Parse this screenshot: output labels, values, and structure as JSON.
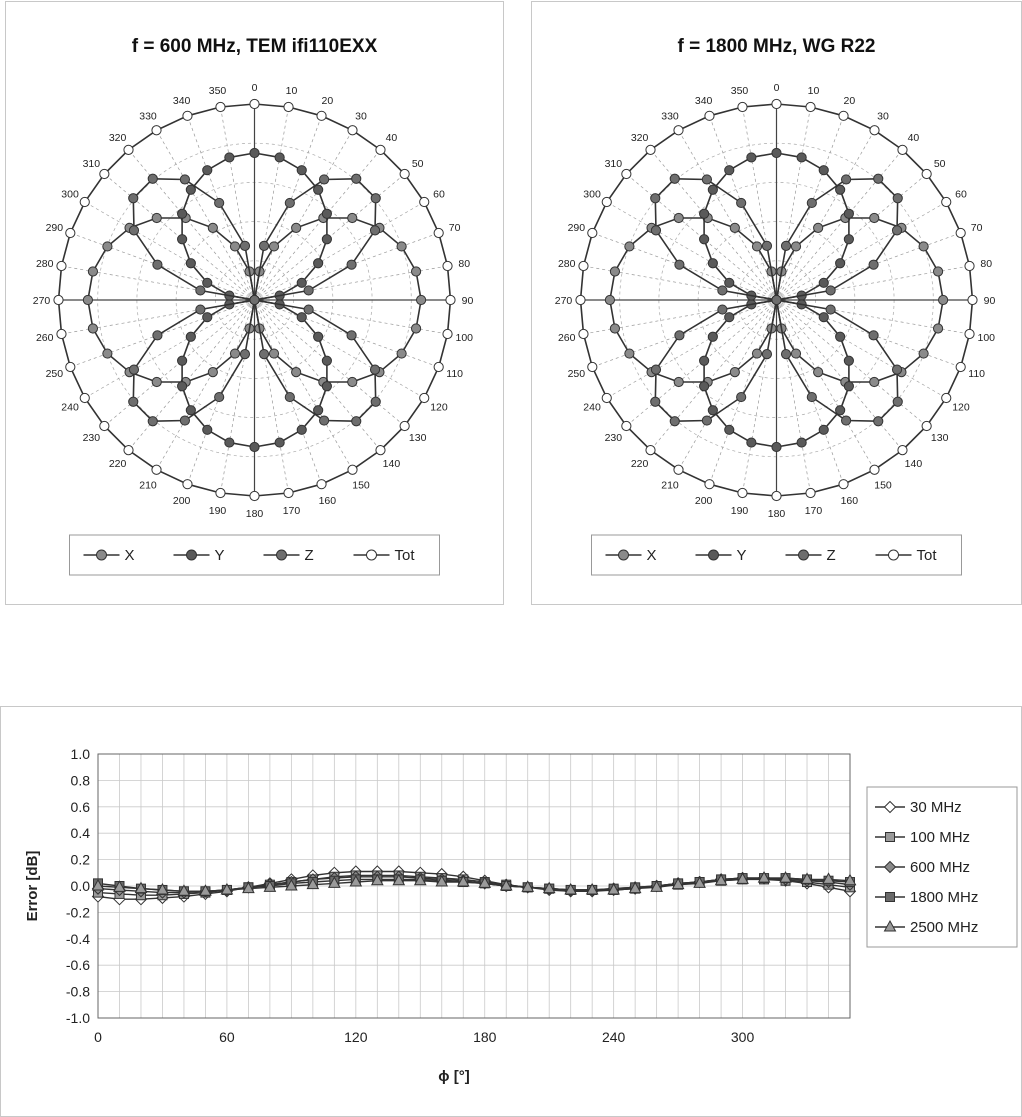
{
  "chart_data": [
    {
      "type": "polar",
      "title": "f = 600 MHz, TEM  ifi110EXX",
      "angles_deg": [
        0,
        10,
        20,
        30,
        40,
        50,
        60,
        70,
        80,
        90,
        100,
        110,
        120,
        130,
        140,
        150,
        160,
        170,
        180,
        190,
        200,
        210,
        220,
        230,
        240,
        250,
        260,
        270,
        280,
        290,
        300,
        310,
        320,
        330,
        340,
        350
      ],
      "angle_labels": [
        "0",
        "10",
        "20",
        "30",
        "40",
        "50",
        "60",
        "70",
        "80",
        "90",
        "100",
        "110",
        "120",
        "130",
        "140",
        "150",
        "160",
        "170",
        "180",
        "190",
        "200",
        "210",
        "220",
        "230",
        "240",
        "250",
        "260",
        "270",
        "280",
        "290",
        "300",
        "310",
        "320",
        "330",
        "340",
        "350"
      ],
      "radial_range": [
        0,
        1
      ],
      "series": [
        {
          "name": "X",
          "model": "abs_sin",
          "amplitude": 0.85,
          "color": "#8a8a8a"
        },
        {
          "name": "Y",
          "model": "abs_cos",
          "amplitude": 0.75,
          "color": "#5a5a5a"
        },
        {
          "name": "Z",
          "model": "abs_sin2",
          "amplitude": 0.82,
          "color": "#6e6e6e"
        },
        {
          "name": "Tot",
          "model": "const",
          "amplitude": 1.0,
          "color": "#ffffff"
        }
      ],
      "legend": [
        "X",
        "Y",
        "Z",
        "Tot"
      ],
      "legend_position": "bottom"
    },
    {
      "type": "polar",
      "title": "f = 1800 MHz, WG R22",
      "angles_deg": [
        0,
        10,
        20,
        30,
        40,
        50,
        60,
        70,
        80,
        90,
        100,
        110,
        120,
        130,
        140,
        150,
        160,
        170,
        180,
        190,
        200,
        210,
        220,
        230,
        240,
        250,
        260,
        270,
        280,
        290,
        300,
        310,
        320,
        330,
        340,
        350
      ],
      "angle_labels": [
        "0",
        "10",
        "20",
        "30",
        "40",
        "50",
        "60",
        "70",
        "80",
        "90",
        "100",
        "110",
        "120",
        "130",
        "140",
        "150",
        "160",
        "170",
        "180",
        "190",
        "200",
        "210",
        "220",
        "230",
        "240",
        "250",
        "260",
        "270",
        "280",
        "290",
        "300",
        "310",
        "320",
        "330",
        "340",
        "350"
      ],
      "radial_range": [
        0,
        1
      ],
      "series": [
        {
          "name": "X",
          "model": "abs_sin",
          "amplitude": 0.85,
          "color": "#8a8a8a"
        },
        {
          "name": "Y",
          "model": "abs_cos",
          "amplitude": 0.75,
          "color": "#5a5a5a"
        },
        {
          "name": "Z",
          "model": "abs_sin2",
          "amplitude": 0.82,
          "color": "#6e6e6e"
        },
        {
          "name": "Tot",
          "model": "const",
          "amplitude": 1.0,
          "color": "#ffffff"
        }
      ],
      "legend": [
        "X",
        "Y",
        "Z",
        "Tot"
      ],
      "legend_position": "bottom"
    },
    {
      "type": "line",
      "title": "",
      "xlabel": "ϕ [°]",
      "ylabel": "Error [dB]",
      "xlim": [
        0,
        350
      ],
      "ylim": [
        -1.0,
        1.0
      ],
      "xticks": [
        0,
        60,
        120,
        180,
        240,
        300
      ],
      "yticks": [
        1.0,
        0.8,
        0.6,
        0.4,
        0.2,
        0.0,
        -0.2,
        -0.4,
        -0.6,
        -0.8,
        -1.0
      ],
      "ytick_labels": [
        "1.0",
        "0.8",
        "0.6",
        "0.4",
        "0.2",
        "0.0",
        "-0.2",
        "-0.4",
        "-0.6",
        "-0.8",
        "-1.0"
      ],
      "grid": true,
      "legend_position": "right",
      "x": [
        0,
        10,
        20,
        30,
        40,
        50,
        60,
        70,
        80,
        90,
        100,
        110,
        120,
        130,
        140,
        150,
        160,
        170,
        180,
        190,
        200,
        210,
        220,
        230,
        240,
        250,
        260,
        270,
        280,
        290,
        300,
        310,
        320,
        330,
        340,
        350
      ],
      "series": [
        {
          "name": "30 MHz",
          "marker": "diamond-open",
          "values": [
            -0.08,
            -0.1,
            -0.1,
            -0.09,
            -0.08,
            -0.06,
            -0.04,
            -0.01,
            0.02,
            0.05,
            0.08,
            0.1,
            0.11,
            0.11,
            0.11,
            0.1,
            0.09,
            0.07,
            0.04,
            0.01,
            -0.01,
            -0.03,
            -0.04,
            -0.04,
            -0.03,
            -0.02,
            0.0,
            0.02,
            0.03,
            0.05,
            0.06,
            0.06,
            0.04,
            0.02,
            -0.01,
            -0.04
          ]
        },
        {
          "name": "100 MHz",
          "marker": "square-gray",
          "values": [
            -0.05,
            -0.06,
            -0.07,
            -0.07,
            -0.06,
            -0.05,
            -0.03,
            -0.01,
            0.01,
            0.03,
            0.05,
            0.07,
            0.08,
            0.08,
            0.08,
            0.07,
            0.06,
            0.05,
            0.03,
            0.01,
            -0.01,
            -0.02,
            -0.03,
            -0.03,
            -0.03,
            -0.02,
            0.0,
            0.01,
            0.03,
            0.04,
            0.05,
            0.05,
            0.04,
            0.03,
            0.01,
            -0.01
          ]
        },
        {
          "name": "600 MHz",
          "marker": "diamond-gray",
          "values": [
            -0.02,
            -0.03,
            -0.04,
            -0.05,
            -0.05,
            -0.04,
            -0.03,
            -0.01,
            0.01,
            0.03,
            0.05,
            0.06,
            0.07,
            0.07,
            0.07,
            0.06,
            0.05,
            0.04,
            0.02,
            0.0,
            -0.01,
            -0.02,
            -0.03,
            -0.03,
            -0.02,
            -0.01,
            0.0,
            0.02,
            0.03,
            0.05,
            0.06,
            0.06,
            0.05,
            0.04,
            0.03,
            0.01
          ]
        },
        {
          "name": "1800 MHz",
          "marker": "square-dark",
          "values": [
            0.02,
            0.0,
            -0.02,
            -0.03,
            -0.04,
            -0.04,
            -0.03,
            -0.01,
            0.0,
            0.02,
            0.03,
            0.04,
            0.05,
            0.05,
            0.05,
            0.05,
            0.04,
            0.03,
            0.02,
            0.0,
            -0.01,
            -0.02,
            -0.03,
            -0.03,
            -0.02,
            -0.01,
            0.0,
            0.02,
            0.03,
            0.05,
            0.06,
            0.06,
            0.06,
            0.05,
            0.04,
            0.03
          ]
        },
        {
          "name": "2500 MHz",
          "marker": "triangle-gray",
          "values": [
            0.0,
            -0.01,
            -0.02,
            -0.03,
            -0.04,
            -0.04,
            -0.03,
            -0.02,
            -0.01,
            0.0,
            0.01,
            0.02,
            0.03,
            0.04,
            0.04,
            0.04,
            0.03,
            0.03,
            0.02,
            0.0,
            -0.01,
            -0.02,
            -0.03,
            -0.03,
            -0.03,
            -0.02,
            -0.01,
            0.01,
            0.02,
            0.04,
            0.05,
            0.06,
            0.06,
            0.05,
            0.05,
            0.04
          ]
        }
      ]
    }
  ]
}
